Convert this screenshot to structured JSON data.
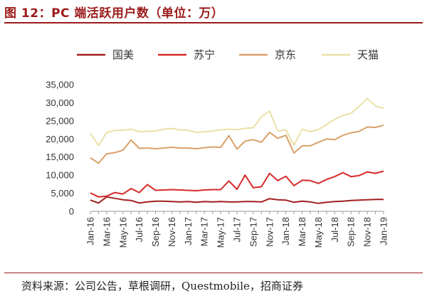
{
  "header": {
    "title": "图 12：PC 端活跃用户数（单位：万）"
  },
  "footer": {
    "source": "资料来源：公司公告，草根调研，Questmobile，招商证券"
  },
  "colors": {
    "title": "#9b1b1b",
    "guomei": "#a31f1f",
    "suning": "#d72a2a",
    "jingdong": "#d9a06a",
    "tianmao": "#ece0a6"
  },
  "chart_data": {
    "type": "line",
    "title": "图 12：PC 端活跃用户数（单位：万）",
    "xlabel": "",
    "ylabel": "",
    "ylim": [
      0,
      35000
    ],
    "yticks": [
      0,
      5000,
      10000,
      15000,
      20000,
      25000,
      30000,
      35000
    ],
    "ytick_labels": [
      "0",
      "5,000",
      "10,000",
      "15,000",
      "20,000",
      "25,000",
      "30,000",
      "35,000"
    ],
    "xtick_labels": [
      "Jan-16",
      "Mar-16",
      "May-16",
      "Jul-16",
      "Sep-16",
      "Nov-16",
      "Jan-17",
      "Mar-17",
      "May-17",
      "Jul-17",
      "Sep-17",
      "Nov-17",
      "Jan-18",
      "Mar-18",
      "May-18",
      "Jul-18",
      "Sep-18",
      "Nov-18",
      "Jan-19"
    ],
    "legend_position": "top",
    "grid": false,
    "x": [
      "Jan-16",
      "Feb-16",
      "Mar-16",
      "Apr-16",
      "May-16",
      "Jun-16",
      "Jul-16",
      "Aug-16",
      "Sep-16",
      "Oct-16",
      "Nov-16",
      "Dec-16",
      "Jan-17",
      "Feb-17",
      "Mar-17",
      "Apr-17",
      "May-17",
      "Jun-17",
      "Jul-17",
      "Aug-17",
      "Sep-17",
      "Oct-17",
      "Nov-17",
      "Dec-17",
      "Jan-18",
      "Feb-18",
      "Mar-18",
      "Apr-18",
      "May-18",
      "Jun-18",
      "Jul-18",
      "Aug-18",
      "Sep-18",
      "Oct-18",
      "Nov-18",
      "Dec-18",
      "Jan-19"
    ],
    "series": [
      {
        "name": "国美",
        "color": "#a31f1f",
        "values": [
          3100,
          2300,
          4000,
          3600,
          3200,
          3000,
          2300,
          2600,
          2800,
          2800,
          2700,
          2600,
          2700,
          2500,
          2700,
          2600,
          2700,
          2600,
          2600,
          2700,
          2700,
          2600,
          3500,
          3200,
          3100,
          2500,
          2800,
          2600,
          2200,
          2500,
          2700,
          2800,
          3000,
          3100,
          3200,
          3300,
          3300
        ]
      },
      {
        "name": "苏宁",
        "color": "#d72a2a",
        "values": [
          5100,
          4000,
          4200,
          5200,
          4800,
          6300,
          5200,
          7400,
          5800,
          5900,
          6000,
          5900,
          5800,
          5700,
          5900,
          6000,
          6000,
          8400,
          6100,
          10000,
          6500,
          6800,
          10500,
          8500,
          9700,
          7100,
          8600,
          8500,
          7700,
          8800,
          9600,
          10700,
          9600,
          9900,
          10900,
          10500,
          11100
        ]
      },
      {
        "name": "京东",
        "color": "#d9a06a",
        "values": [
          14800,
          13300,
          15900,
          16200,
          16900,
          19700,
          17400,
          17500,
          17300,
          17500,
          17700,
          17500,
          17500,
          17300,
          17600,
          17800,
          17700,
          20900,
          17200,
          19400,
          19800,
          19100,
          21800,
          20200,
          21000,
          16100,
          18100,
          18100,
          19100,
          20000,
          19800,
          21000,
          21700,
          22100,
          23300,
          23200,
          23800
        ]
      },
      {
        "name": "天猫",
        "color": "#ece0a6",
        "values": [
          21600,
          18200,
          21800,
          22400,
          22400,
          22700,
          22000,
          22100,
          22200,
          22700,
          22900,
          22500,
          22400,
          21800,
          22000,
          22200,
          22500,
          22700,
          22600,
          22900,
          23100,
          26100,
          27700,
          22200,
          22500,
          18300,
          22700,
          22000,
          22600,
          24000,
          25400,
          26500,
          27100,
          29000,
          31200,
          29100,
          28500
        ]
      }
    ]
  }
}
